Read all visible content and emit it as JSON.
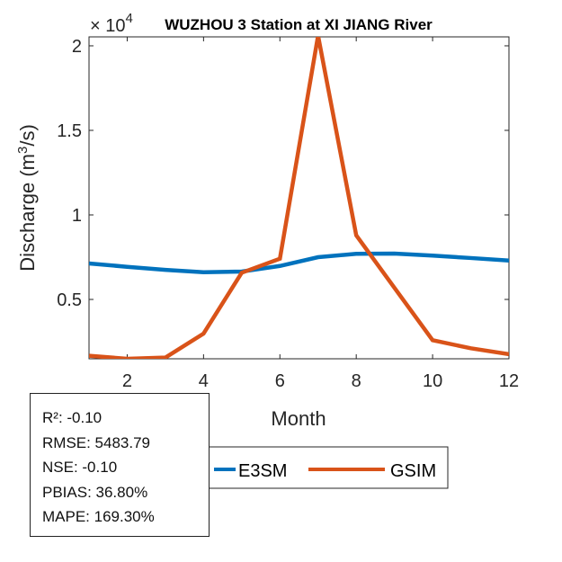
{
  "chart_data": {
    "type": "line",
    "title": "WUZHOU 3  Station at  XI JIANG  River",
    "xlabel": "Month",
    "ylabel": "Discharge (m³/s)",
    "ylabel_parts": {
      "pre": "Discharge (m",
      "sup": "3",
      "post": "/s)"
    },
    "y_exponent_label": "× 10",
    "y_exponent": "4",
    "x": [
      1,
      2,
      3,
      4,
      5,
      6,
      7,
      8,
      9,
      10,
      11,
      12
    ],
    "xlim": [
      1,
      12
    ],
    "ylim": [
      0.149,
      2.053
    ],
    "xticks": [
      2,
      4,
      6,
      8,
      10,
      12
    ],
    "xtick_labels": [
      "2",
      "4",
      "6",
      "8",
      "10",
      "12"
    ],
    "yticks": [
      0.5,
      1,
      1.5,
      2
    ],
    "ytick_labels": [
      "0.5",
      "1",
      "1.5",
      "2"
    ],
    "grid": false,
    "legend_position": "bottom-center",
    "series": [
      {
        "name": "E3SM",
        "color": "#0072BD",
        "values": [
          0.713,
          0.693,
          0.675,
          0.661,
          0.665,
          0.698,
          0.75,
          0.77,
          0.771,
          0.759,
          0.745,
          0.73
        ]
      },
      {
        "name": "GSIM",
        "color": "#D95319",
        "values": [
          0.167,
          0.149,
          0.156,
          0.298,
          0.658,
          0.741,
          2.06,
          0.879,
          0.569,
          0.259,
          0.211,
          0.176
        ]
      }
    ]
  },
  "stats": [
    "R²: -0.10",
    "RMSE: 5483.79",
    "NSE: -0.10",
    "PBIAS: 36.80%",
    "MAPE: 169.30%"
  ]
}
